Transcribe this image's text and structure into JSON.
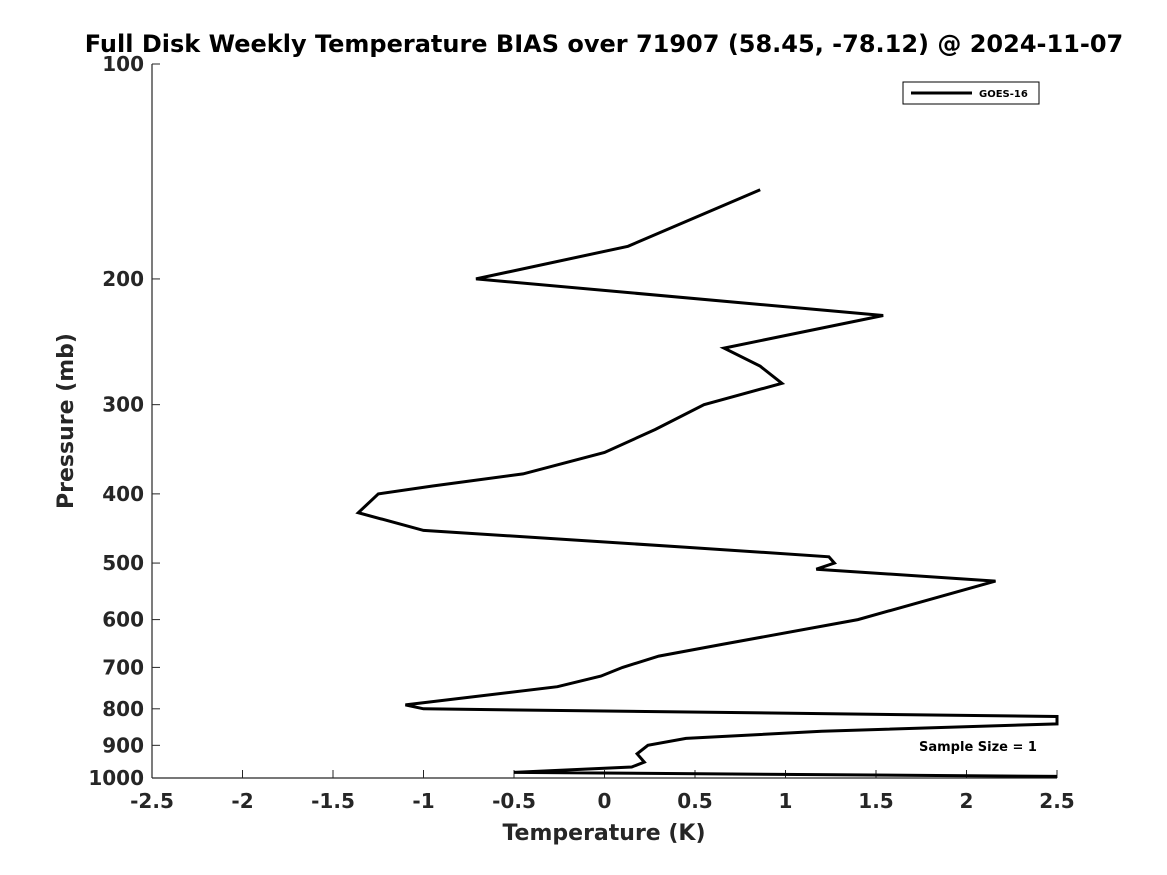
{
  "chart_data": {
    "type": "line",
    "title": "Full Disk Weekly Temperature BIAS over 71907 (58.45, -78.12) @ 2024-11-07",
    "xlabel": "Temperature (K)",
    "ylabel": "Pressure (mb)",
    "xlim": [
      -2.5,
      2.5
    ],
    "ylim": [
      1000,
      100
    ],
    "yscale": "log",
    "y_reversed": true,
    "grid": false,
    "legend_position": "top-right",
    "xticks": [
      -2.5,
      -2,
      -1.5,
      -1,
      -0.5,
      0,
      0.5,
      1,
      1.5,
      2,
      2.5
    ],
    "xtick_labels": [
      "-2.5",
      "-2",
      "-1.5",
      "-1",
      "-0.5",
      "0",
      "0.5",
      "1",
      "1.5",
      "2",
      "2.5"
    ],
    "yticks": [
      100,
      200,
      300,
      400,
      500,
      600,
      700,
      800,
      900,
      1000
    ],
    "ytick_labels": [
      "100",
      "200",
      "300",
      "400",
      "500",
      "600",
      "700",
      "800",
      "900",
      "1000"
    ],
    "series": [
      {
        "name": "GOES-16",
        "color": "#000000",
        "points": [
          {
            "x": 0.86,
            "y": 150
          },
          {
            "x": 0.13,
            "y": 180
          },
          {
            "x": -0.71,
            "y": 200
          },
          {
            "x": 1.54,
            "y": 225
          },
          {
            "x": 0.66,
            "y": 250
          },
          {
            "x": 0.86,
            "y": 265
          },
          {
            "x": 0.98,
            "y": 280
          },
          {
            "x": 0.55,
            "y": 300
          },
          {
            "x": 0.28,
            "y": 325
          },
          {
            "x": 0.0,
            "y": 350
          },
          {
            "x": -0.45,
            "y": 375
          },
          {
            "x": -0.95,
            "y": 390
          },
          {
            "x": -1.25,
            "y": 400
          },
          {
            "x": -1.36,
            "y": 425
          },
          {
            "x": -1.0,
            "y": 450
          },
          {
            "x": 0.45,
            "y": 475
          },
          {
            "x": 1.24,
            "y": 490
          },
          {
            "x": 1.27,
            "y": 500
          },
          {
            "x": 1.17,
            "y": 510
          },
          {
            "x": 2.16,
            "y": 530
          },
          {
            "x": 1.4,
            "y": 600
          },
          {
            "x": 0.65,
            "y": 650
          },
          {
            "x": 0.3,
            "y": 675
          },
          {
            "x": 0.1,
            "y": 700
          },
          {
            "x": -0.02,
            "y": 720
          },
          {
            "x": -0.26,
            "y": 745
          },
          {
            "x": -1.1,
            "y": 790
          },
          {
            "x": -1.0,
            "y": 800
          },
          {
            "x": 2.5,
            "y": 820
          },
          {
            "x": 2.5,
            "y": 840
          },
          {
            "x": 1.2,
            "y": 860
          },
          {
            "x": 0.45,
            "y": 880
          },
          {
            "x": 0.24,
            "y": 900
          },
          {
            "x": 0.18,
            "y": 925
          },
          {
            "x": 0.22,
            "y": 950
          },
          {
            "x": 0.15,
            "y": 965
          },
          {
            "x": -0.5,
            "y": 982
          },
          {
            "x": 2.5,
            "y": 995
          }
        ]
      }
    ],
    "annotations": [
      {
        "text": "Sample Size = 1"
      }
    ]
  }
}
